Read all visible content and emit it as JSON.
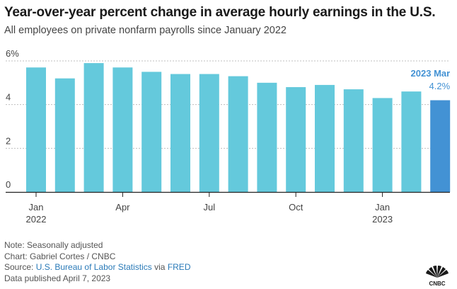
{
  "title": "Year-over-year percent change in average hourly earnings in the U.S.",
  "subtitle": "All employees on private nonfarm payrolls since January 2022",
  "chart_data": {
    "type": "bar",
    "title": "Year-over-year percent change in average hourly earnings in the U.S.",
    "subtitle": "All employees on private nonfarm payrolls since January 2022",
    "categories": [
      "2022-01",
      "2022-02",
      "2022-03",
      "2022-04",
      "2022-05",
      "2022-06",
      "2022-07",
      "2022-08",
      "2022-09",
      "2022-10",
      "2022-11",
      "2022-12",
      "2023-01",
      "2023-02",
      "2023-03"
    ],
    "values": [
      5.7,
      5.2,
      5.9,
      5.7,
      5.5,
      5.4,
      5.4,
      5.3,
      5.0,
      4.8,
      4.9,
      4.7,
      4.3,
      4.6,
      4.2
    ],
    "ylim": [
      0,
      6
    ],
    "yticks": [
      0,
      2,
      4,
      6
    ],
    "ytick_labels": [
      "0",
      "2",
      "4",
      "6%"
    ],
    "xticks": [
      {
        "index": 0,
        "label": "Jan",
        "sublabel": "2022"
      },
      {
        "index": 3,
        "label": "Apr",
        "sublabel": ""
      },
      {
        "index": 6,
        "label": "Jul",
        "sublabel": ""
      },
      {
        "index": 9,
        "label": "Oct",
        "sublabel": ""
      },
      {
        "index": 12,
        "label": "Jan",
        "sublabel": "2023"
      }
    ],
    "grid": true,
    "colors": {
      "bar": "#64c9dc",
      "highlight": "#4392d4",
      "grid": "#bfbfbf",
      "axis": "#222222"
    },
    "annotation": {
      "index": 14,
      "label": "2023 Mar",
      "value_label": "4.2%"
    }
  },
  "footer": {
    "note": "Note: Seasonally adjusted",
    "credit": "Chart: Gabriel Cortes / CNBC",
    "source_prefix": "Source: ",
    "source_link1": "U.S. Bureau of Labor Statistics",
    "source_via": " via ",
    "source_link2": "FRED",
    "published": "Data published April 7, 2023"
  },
  "logo": {
    "text": "CNBC"
  }
}
